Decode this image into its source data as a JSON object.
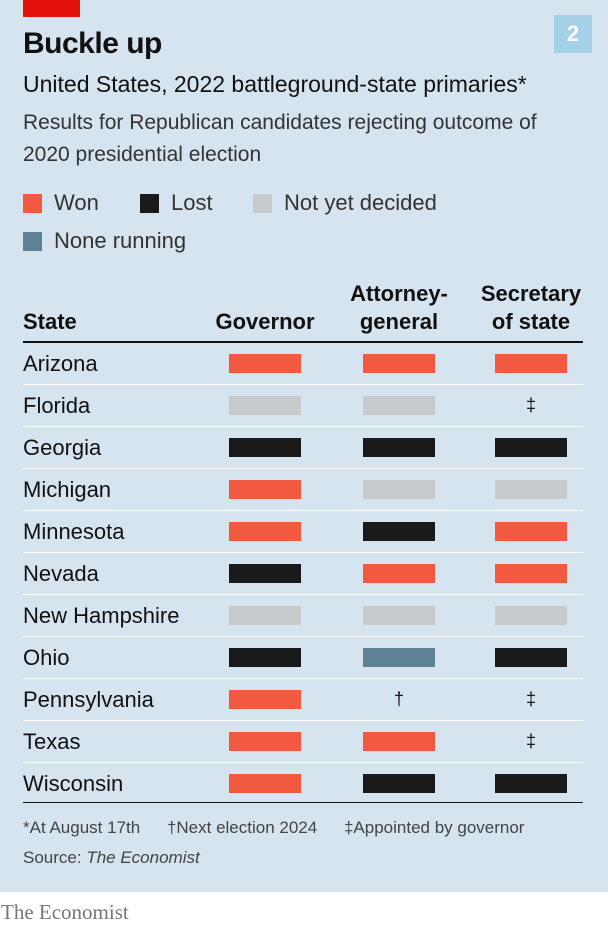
{
  "meta": {
    "badge": "2"
  },
  "colors": {
    "won": "#f15a40",
    "lost": "#1a1a1a",
    "undecided": "#c8cbce",
    "none_running": "#5e8196",
    "accent_red": "#e3120b",
    "badge_bg": "#a4d0e8"
  },
  "title": "Buckle up",
  "subtitle": "United States, 2022 battleground-state primaries*",
  "description": "Results for Republican candidates rejecting outcome of 2020 presidential election",
  "legend": [
    {
      "key": "won",
      "label": "Won"
    },
    {
      "key": "lost",
      "label": "Lost"
    },
    {
      "key": "undecided",
      "label": "Not yet decided"
    },
    {
      "key": "none_running",
      "label": "None running"
    }
  ],
  "chart_data": {
    "type": "table",
    "columns": [
      "State",
      "Governor",
      "Attorney-general",
      "Secretary of state"
    ],
    "column_labels": [
      "State",
      "Governor",
      "Attorney-\ngeneral",
      "Secretary\nof state"
    ],
    "rows": [
      {
        "state": "Arizona",
        "values": [
          "won",
          "won",
          "won"
        ]
      },
      {
        "state": "Florida",
        "values": [
          "undecided",
          "undecided",
          "‡"
        ]
      },
      {
        "state": "Georgia",
        "values": [
          "lost",
          "lost",
          "lost"
        ]
      },
      {
        "state": "Michigan",
        "values": [
          "won",
          "undecided",
          "undecided"
        ]
      },
      {
        "state": "Minnesota",
        "values": [
          "won",
          "lost",
          "won"
        ]
      },
      {
        "state": "Nevada",
        "values": [
          "lost",
          "won",
          "won"
        ]
      },
      {
        "state": "New Hampshire",
        "values": [
          "undecided",
          "undecided",
          "undecided"
        ]
      },
      {
        "state": "Ohio",
        "values": [
          "lost",
          "none_running",
          "lost"
        ]
      },
      {
        "state": "Pennsylvania",
        "values": [
          "won",
          "†",
          "‡"
        ]
      },
      {
        "state": "Texas",
        "values": [
          "won",
          "won",
          "‡"
        ]
      },
      {
        "state": "Wisconsin",
        "values": [
          "won",
          "lost",
          "lost"
        ]
      }
    ]
  },
  "footnotes": [
    "*At August 17th",
    "†Next election 2024",
    "‡Appointed by governor"
  ],
  "source": {
    "prefix": "Source: ",
    "name": "The Economist"
  },
  "brand": "The Economist"
}
